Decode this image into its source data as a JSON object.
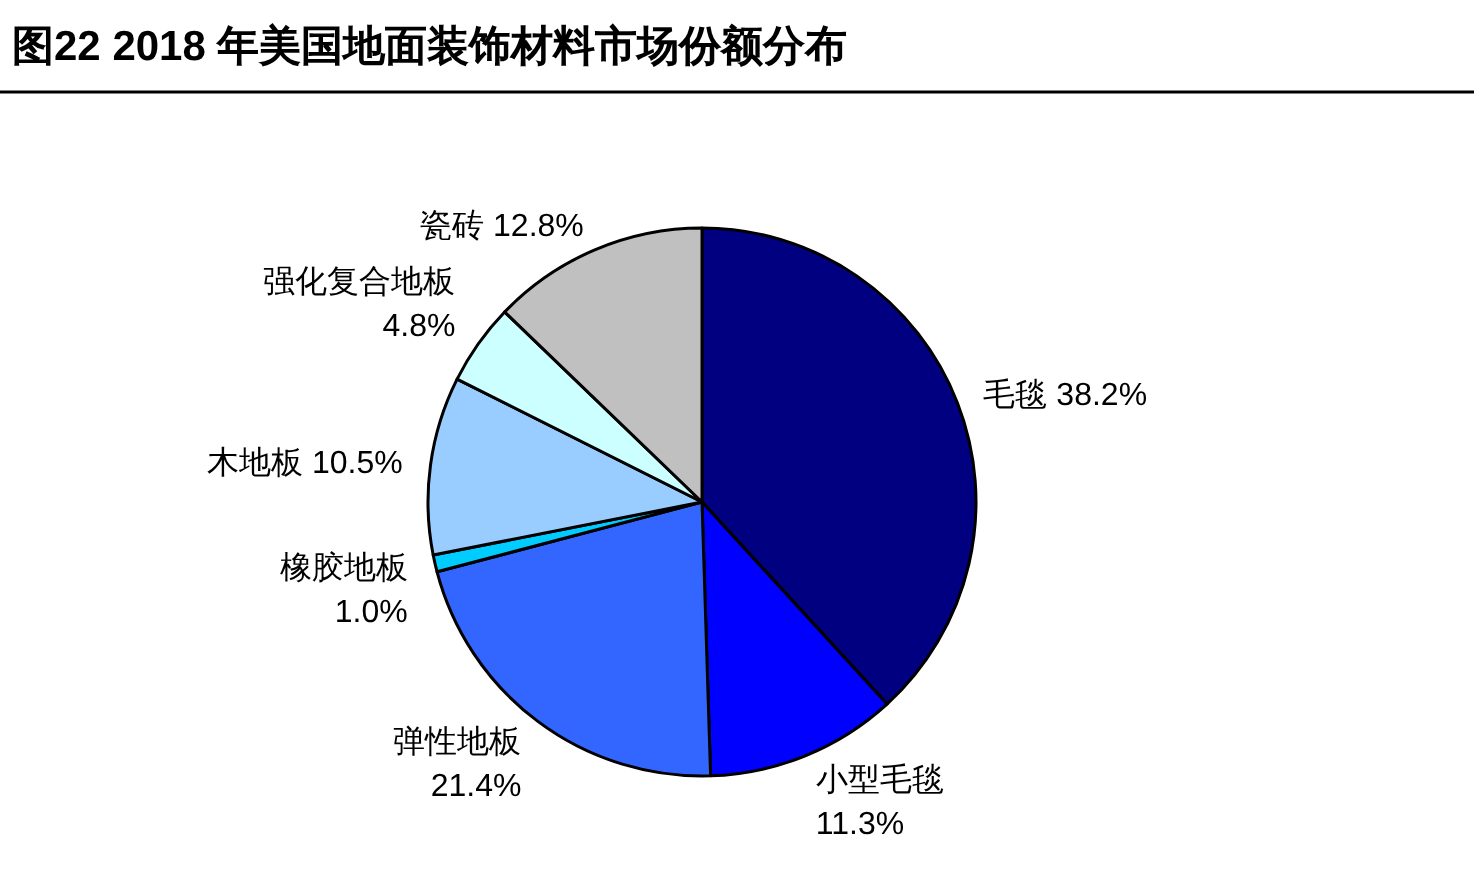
{
  "chart_data": {
    "type": "pie",
    "title": "图22 2018 年美国地面装饰材料市场份额分布",
    "categories": [
      "毛毯",
      "小型毛毯",
      "弹性地板",
      "橡胶地板",
      "木地板",
      "强化复合地板",
      "瓷砖"
    ],
    "values": [
      38.2,
      11.3,
      21.4,
      1.0,
      10.5,
      4.8,
      12.8
    ],
    "colors": [
      "#000080",
      "#0000ff",
      "#3366ff",
      "#00ccff",
      "#99ccff",
      "#ccffff",
      "#c0c0c0"
    ],
    "value_labels": [
      "38.2%",
      "11.3%",
      "21.4%",
      "1.0%",
      "10.5%",
      "4.8%",
      "12.8%"
    ]
  }
}
